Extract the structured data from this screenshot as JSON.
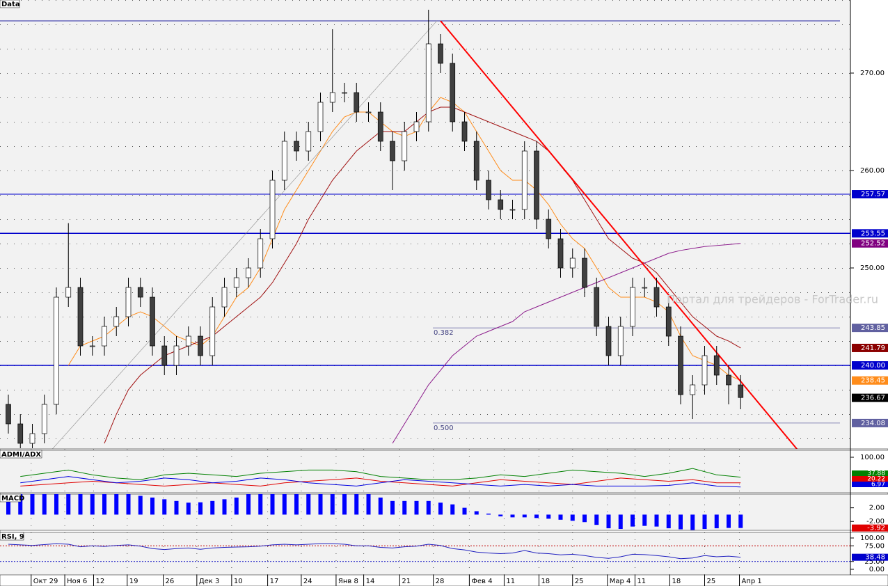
{
  "chart_data": {
    "type": "candlestick",
    "title": "Data",
    "watermark": "Портал для трейдеров - ForTrader.ru",
    "xticks": [
      {
        "value": 1.9,
        "label": "Окт 29"
      },
      {
        "value": 4.7,
        "label": "Ноя 6"
      },
      {
        "value": 7.1,
        "label": "12"
      },
      {
        "value": 9.9,
        "label": "19"
      },
      {
        "value": 12.9,
        "label": "26"
      },
      {
        "value": 15.7,
        "label": "Дек 3"
      },
      {
        "value": 18.6,
        "label": "10"
      },
      {
        "value": 21.6,
        "label": "17"
      },
      {
        "value": 24.4,
        "label": "24"
      },
      {
        "value": 27.3,
        "label": "Янв 8"
      },
      {
        "value": 29.6,
        "label": "14"
      },
      {
        "value": 32.6,
        "label": "21"
      },
      {
        "value": 35.4,
        "label": "28"
      },
      {
        "value": 38.4,
        "label": "Фев 4"
      },
      {
        "value": 41.3,
        "label": "11"
      },
      {
        "value": 44.2,
        "label": "18"
      },
      {
        "value": 47,
        "label": "25"
      },
      {
        "value": 49.9,
        "label": "Мар 4"
      },
      {
        "value": 52.2,
        "label": "11"
      },
      {
        "value": 55.1,
        "label": "18"
      },
      {
        "value": 58,
        "label": "25"
      },
      {
        "value": 60.9,
        "label": "Апр 1"
      }
    ],
    "ylim": [
      231.43,
      277.5
    ],
    "yticks": [
      {
        "value": 270,
        "label": "270.00"
      },
      {
        "value": 260,
        "label": "260.00"
      },
      {
        "value": 250,
        "label": "250.00"
      }
    ],
    "candles": {
      "up_color": "#ffffff",
      "down_color": "#404040",
      "open": [
        236,
        234,
        232,
        233,
        236,
        247,
        248,
        242,
        242,
        244,
        245,
        248,
        247,
        242,
        240,
        242,
        243,
        241,
        246,
        248,
        249,
        250,
        253,
        259,
        263,
        262,
        264,
        267,
        268,
        268,
        266,
        266,
        263,
        261,
        264,
        265,
        273,
        271,
        265,
        263,
        259,
        257,
        256,
        256,
        262,
        255,
        253,
        250,
        251,
        248,
        244,
        241,
        244,
        248,
        248,
        246,
        243,
        237,
        238,
        241,
        239,
        238
      ],
      "high": [
        237,
        235,
        234,
        237,
        248,
        254.6,
        249,
        243,
        245,
        246,
        249,
        249,
        248,
        243,
        243,
        244,
        244,
        247,
        249,
        250,
        251,
        254,
        260,
        264,
        264,
        265,
        268,
        274.5,
        269,
        269,
        267,
        267,
        264,
        265,
        266,
        276.5,
        274,
        272,
        266,
        264,
        260,
        258,
        257,
        263,
        263,
        256,
        254,
        252,
        252,
        249,
        245,
        245,
        249,
        249,
        249,
        247,
        244,
        239,
        242,
        242,
        240,
        239
      ],
      "low": [
        233,
        231.5,
        231.5,
        232,
        235,
        246,
        241,
        241,
        241,
        243,
        244,
        246,
        241,
        239,
        239,
        241,
        240,
        240,
        245,
        247,
        248,
        249,
        252,
        258,
        261,
        261,
        263,
        266,
        267,
        265,
        265,
        262,
        258,
        260,
        263,
        264,
        270,
        264,
        262,
        258,
        256,
        255,
        255,
        255,
        254,
        252,
        249,
        249,
        247,
        243,
        240,
        240,
        243,
        247,
        245,
        242,
        236,
        234.5,
        237,
        238,
        236,
        235.5
      ],
      "close": [
        234,
        232,
        233,
        236,
        247,
        248,
        242,
        242,
        244,
        245,
        248,
        247,
        242,
        240,
        242,
        243,
        241,
        246,
        248,
        249,
        250,
        253,
        259,
        263,
        262,
        264,
        267,
        268,
        268,
        266,
        266,
        263,
        261,
        264,
        265,
        273,
        271,
        265,
        263,
        259,
        257,
        256,
        256,
        262,
        255,
        253,
        250,
        251,
        248,
        244,
        241,
        244,
        248,
        248,
        246,
        243,
        237,
        238,
        241,
        239,
        238,
        236.7
      ]
    },
    "series": [
      {
        "color": "#ff8c1a",
        "values": [
          null,
          null,
          null,
          null,
          null,
          240,
          242,
          242.5,
          243,
          244,
          245,
          245.5,
          245,
          244,
          243,
          242.5,
          242,
          243,
          245,
          247,
          248,
          250,
          253,
          256,
          258,
          260,
          262,
          264,
          265.5,
          266,
          266,
          265,
          264,
          263.5,
          264,
          266,
          267.5,
          267,
          266,
          264,
          262,
          260,
          259,
          259,
          258,
          256.5,
          254.5,
          253,
          252,
          250,
          248,
          247,
          247,
          247,
          246.5,
          245.5,
          243,
          241,
          240.5,
          240,
          239,
          238.45
        ]
      },
      {
        "color": "#a01010",
        "values": [
          null,
          null,
          null,
          null,
          null,
          null,
          null,
          null,
          232,
          235,
          237.5,
          239,
          240,
          241,
          241.5,
          242,
          242.5,
          243,
          244,
          245,
          246,
          247,
          248.5,
          250.5,
          252.5,
          255,
          257,
          259,
          260.5,
          262,
          263,
          264,
          264,
          264,
          265,
          266,
          266.5,
          266.5,
          266,
          265.5,
          265,
          264.5,
          264,
          263.5,
          263,
          262,
          260.5,
          259,
          257,
          255,
          253,
          252,
          251,
          250.5,
          249.5,
          248,
          246.5,
          245,
          244,
          243,
          242.5,
          241.79
        ]
      },
      {
        "color": "#8b1a8b",
        "values": [
          null,
          null,
          null,
          null,
          null,
          null,
          null,
          null,
          null,
          null,
          null,
          null,
          null,
          null,
          null,
          null,
          null,
          null,
          null,
          null,
          null,
          null,
          null,
          null,
          null,
          null,
          null,
          null,
          null,
          null,
          null,
          null,
          232,
          234,
          236,
          238,
          239.5,
          241,
          242,
          243,
          243.5,
          244,
          244.5,
          245.5,
          246,
          246.5,
          247,
          247.5,
          248,
          248.5,
          249,
          249.5,
          250,
          250.5,
          251,
          251.5,
          251.8,
          252,
          252.2,
          252.3,
          252.4,
          252.52
        ]
      }
    ],
    "levels": [
      {
        "value": 275.36,
        "color": "#2020a0"
      },
      {
        "value": 257.57,
        "color": "#0000cc"
      },
      {
        "value": 253.55,
        "color": "#0000cc"
      },
      {
        "value": 240,
        "color": "#0000cc"
      }
    ],
    "fib": [
      {
        "value": 243.85,
        "label": "0.382"
      },
      {
        "value": 234.08,
        "label": "0.500"
      }
    ],
    "trendlines": [
      {
        "x": [
          36,
          65.7
        ],
        "values": [
          275.36,
          231.4
        ],
        "color": "#ff0000"
      },
      {
        "x": [
          3.65,
          35.7
        ],
        "values": [
          231.4,
          275.36
        ],
        "color": "#909090"
      }
    ],
    "price_labels": [
      {
        "value": 257.57,
        "color": "#0000cc"
      },
      {
        "value": 253.55,
        "color": "#0000cc"
      },
      {
        "value": 252.52,
        "color": "#800080"
      },
      {
        "value": 243.85,
        "color": "#6060a0"
      },
      {
        "value": 241.79,
        "color": "#8b0000"
      },
      {
        "value": 240,
        "label": "240.00",
        "color": "#0000cc"
      },
      {
        "value": 238.45,
        "color": "#ff8c1a"
      },
      {
        "value": 236.67,
        "color": "#000000"
      },
      {
        "value": 234.08,
        "color": "#6060a0"
      }
    ],
    "adx": {
      "title": "ADMI/ADX",
      "ylim": [
        0,
        100
      ],
      "yticks": [
        {
          "value": 100,
          "label": "100.00"
        }
      ],
      "x": [
        1,
        3,
        5,
        7,
        9,
        11,
        13,
        15,
        17,
        19,
        21,
        23,
        25,
        27,
        29,
        31,
        33,
        35,
        37,
        39,
        41,
        43,
        45,
        47,
        49,
        51,
        53,
        55,
        57,
        59,
        61
      ],
      "series": [
        {
          "color": "#008000",
          "values": [
            40,
            50,
            60,
            45,
            35,
            30,
            45,
            50,
            45,
            40,
            50,
            55,
            60,
            60,
            55,
            40,
            35,
            30,
            30,
            35,
            45,
            40,
            50,
            60,
            55,
            50,
            40,
            50,
            65,
            45,
            37.88
          ],
          "label": "37.88"
        },
        {
          "color": "#e00000",
          "values": [
            10,
            15,
            20,
            25,
            20,
            15,
            10,
            15,
            20,
            15,
            10,
            20,
            25,
            30,
            35,
            25,
            20,
            15,
            10,
            20,
            30,
            25,
            20,
            15,
            25,
            35,
            30,
            25,
            30,
            20,
            20.22
          ],
          "label": "20.22"
        },
        {
          "color": "#0000e0",
          "values": [
            20,
            30,
            40,
            30,
            20,
            25,
            35,
            30,
            20,
            25,
            35,
            30,
            20,
            15,
            10,
            20,
            30,
            25,
            20,
            15,
            10,
            15,
            10,
            15,
            10,
            10,
            10,
            12,
            20,
            10,
            6.97
          ],
          "label": "6.97"
        }
      ]
    },
    "macd": {
      "title": "MACD",
      "ylim": [
        -4.6,
        6
      ],
      "yticks": [
        {
          "value": 2,
          "label": "2.00"
        },
        {
          "value": -2,
          "label": "-2.00"
        }
      ],
      "color": "#0000ff",
      "last_label": {
        "value": -3.92,
        "label": "-3.92"
      },
      "values": [
        6,
        6,
        6,
        6,
        6,
        6,
        6,
        6,
        6,
        6,
        6,
        5.5,
        5,
        4.5,
        4,
        3.5,
        3.6,
        4,
        4.5,
        5,
        6,
        6,
        6,
        6,
        6,
        6,
        6,
        6,
        6,
        6,
        6,
        5,
        4,
        4,
        4,
        4,
        3.5,
        3,
        2,
        1,
        0.3,
        -0.5,
        -0.8,
        -0.8,
        -1,
        -1.2,
        -1.5,
        -1.8,
        -2.2,
        -3,
        -4,
        -4.2,
        -3.5,
        -3.3,
        -3.5,
        -4,
        -4.3,
        -4.5,
        -4.2,
        -4,
        -3.9,
        -3.92
      ]
    },
    "rsi": {
      "title": "RSI, 9",
      "ylim": [
        0,
        100
      ],
      "yticks": [
        {
          "value": 100,
          "label": "100.00"
        },
        {
          "value": 75,
          "label": "75.00"
        },
        {
          "value": 25,
          "label": "25.00"
        },
        {
          "value": 0,
          "label": "0.00"
        }
      ],
      "color": "#2020c0",
      "last_label": "38.48",
      "values": [
        80,
        78,
        76,
        79,
        82,
        80,
        72,
        75,
        73,
        76,
        78,
        74,
        66,
        63,
        66,
        68,
        64,
        68,
        70,
        71,
        72,
        74,
        78,
        80,
        78,
        80,
        82,
        82,
        80,
        75,
        75,
        70,
        68,
        72,
        74,
        80,
        76,
        66,
        62,
        55,
        52,
        50,
        52,
        60,
        52,
        50,
        46,
        48,
        44,
        38,
        35,
        40,
        48,
        47,
        44,
        40,
        34,
        36,
        44,
        40,
        42,
        38.48
      ]
    }
  }
}
